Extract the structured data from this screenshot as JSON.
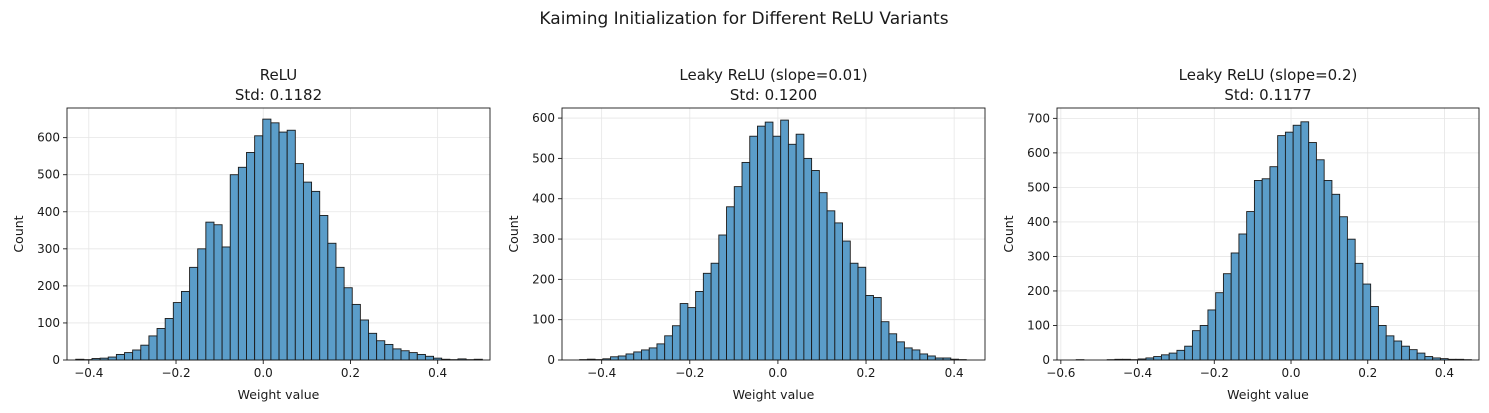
{
  "figure": {
    "suptitle": "Kaiming Initialization for Different ReLU Variants"
  },
  "chart_data": [
    {
      "type": "bar",
      "title": "ReLU",
      "subtitle": "Std: 0.1182",
      "xlabel": "Weight value",
      "ylabel": "Count",
      "xlim": [
        -0.45,
        0.52
      ],
      "ylim": [
        0,
        680
      ],
      "xticks": [
        -0.4,
        -0.2,
        0.0,
        0.2,
        0.4
      ],
      "xtick_labels": [
        "−0.4",
        "−0.2",
        "0.0",
        "0.2",
        "0.4"
      ],
      "yticks": [
        0,
        100,
        200,
        300,
        400,
        500,
        600
      ],
      "bin_start": -0.43,
      "bin_width": 0.01865,
      "counts": [
        2,
        1,
        4,
        5,
        8,
        15,
        20,
        27,
        40,
        65,
        85,
        112,
        155,
        185,
        250,
        300,
        372,
        365,
        305,
        500,
        520,
        560,
        605,
        650,
        640,
        615,
        620,
        530,
        480,
        455,
        390,
        315,
        250,
        195,
        150,
        108,
        72,
        52,
        42,
        30,
        25,
        20,
        15,
        10,
        5,
        2,
        1,
        3,
        1,
        2
      ],
      "grid": true,
      "bar_color": "#5b9dc9",
      "edge_color": "#1a1a1a"
    },
    {
      "type": "bar",
      "title": "Leaky ReLU (slope=0.01)",
      "subtitle": "Std: 0.1200",
      "xlabel": "Weight value",
      "ylabel": "Count",
      "xlim": [
        -0.49,
        0.47
      ],
      "ylim": [
        0,
        625
      ],
      "xticks": [
        -0.4,
        -0.2,
        0.0,
        0.2,
        0.4
      ],
      "xtick_labels": [
        "−0.4",
        "−0.2",
        "0.0",
        "0.2",
        "0.4"
      ],
      "yticks": [
        0,
        100,
        200,
        300,
        400,
        500,
        600
      ],
      "bin_start": -0.45,
      "bin_width": 0.01755,
      "counts": [
        1,
        2,
        1,
        3,
        8,
        10,
        15,
        20,
        25,
        30,
        40,
        60,
        85,
        140,
        130,
        170,
        215,
        240,
        310,
        380,
        430,
        490,
        555,
        580,
        590,
        555,
        595,
        535,
        560,
        500,
        470,
        415,
        370,
        340,
        295,
        240,
        230,
        160,
        155,
        95,
        65,
        45,
        30,
        25,
        15,
        10,
        5,
        5,
        2,
        1
      ],
      "grid": true,
      "bar_color": "#5b9dc9",
      "edge_color": "#1a1a1a"
    },
    {
      "type": "bar",
      "title": "Leaky ReLU (slope=0.2)",
      "subtitle": "Std: 0.1177",
      "xlabel": "Weight value",
      "ylabel": "Count",
      "xlim": [
        -0.61,
        0.49
      ],
      "ylim": [
        0,
        730
      ],
      "xticks": [
        -0.6,
        -0.4,
        -0.2,
        0.0,
        0.2,
        0.4
      ],
      "xtick_labels": [
        "−0.6",
        "−0.4",
        "−0.2",
        "0.0",
        "0.2",
        "0.4"
      ],
      "yticks": [
        0,
        100,
        200,
        300,
        400,
        500,
        600,
        700
      ],
      "bin_start": -0.56,
      "bin_width": 0.0202,
      "counts": [
        1,
        0,
        0,
        0,
        1,
        2,
        2,
        1,
        3,
        6,
        10,
        15,
        20,
        28,
        40,
        85,
        100,
        145,
        195,
        250,
        310,
        365,
        430,
        520,
        525,
        560,
        650,
        660,
        680,
        690,
        630,
        580,
        520,
        480,
        415,
        350,
        280,
        220,
        155,
        100,
        70,
        55,
        40,
        30,
        20,
        10,
        6,
        4,
        2,
        2,
        1
      ],
      "grid": true,
      "bar_color": "#5b9dc9",
      "edge_color": "#1a1a1a"
    }
  ]
}
